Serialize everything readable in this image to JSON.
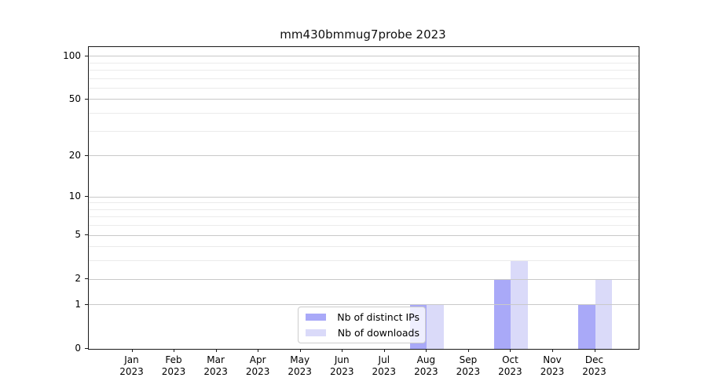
{
  "title": "mm430bmmug7probe 2023",
  "chart_data": {
    "type": "bar",
    "title": "mm430bmmug7probe 2023",
    "categories": [
      "Jan 2023",
      "Feb 2023",
      "Mar 2023",
      "Apr 2023",
      "May 2023",
      "Jun 2023",
      "Jul 2023",
      "Aug 2023",
      "Sep 2023",
      "Oct 2023",
      "Nov 2023",
      "Dec 2023"
    ],
    "series": [
      {
        "name": "Nb of distinct IPs",
        "color": "#a9a9f8",
        "values": [
          0,
          0,
          0,
          0,
          0,
          0,
          0,
          1,
          0,
          2,
          0,
          1
        ]
      },
      {
        "name": "Nb of downloads",
        "color": "#dadaf9",
        "values": [
          0,
          0,
          0,
          0,
          0,
          0,
          0,
          1,
          0,
          3,
          0,
          2
        ]
      }
    ],
    "xlabel": "",
    "ylabel": "",
    "yticks": [
      0,
      1,
      2,
      5,
      10,
      20,
      50,
      100
    ],
    "minor_yticks": [
      3,
      4,
      6,
      7,
      8,
      9,
      30,
      40,
      60,
      70,
      80,
      90
    ],
    "scale": "log1p",
    "ylim": [
      0,
      116
    ],
    "grid": true,
    "grid_on_top_of_bars": true,
    "legend_position": "lower center",
    "colors": {
      "grid_major": "#c9c9c9",
      "grid_minor": "#ebebeb",
      "spine": "#1a1a1a",
      "text": "#000000",
      "background": "#ffffff"
    }
  }
}
